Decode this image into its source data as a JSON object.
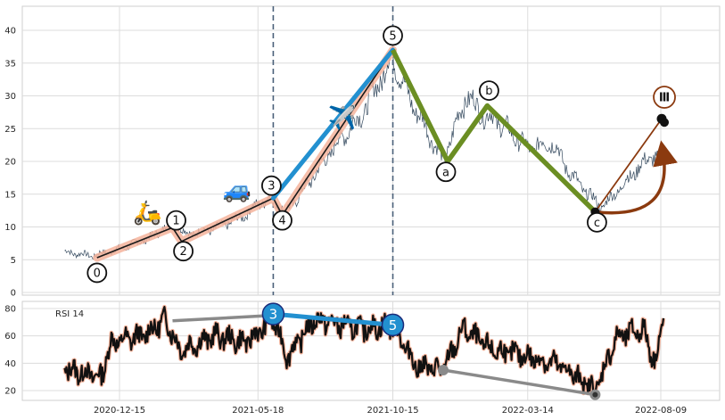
{
  "chart_data": [
    {
      "type": "line",
      "panel": "price",
      "title": "",
      "xlabel": "",
      "ylabel": "",
      "ylim": [
        -0.5,
        43
      ],
      "grid": true,
      "x_tick_labels": [
        "2020-12-15",
        "2021-05-18",
        "2021-10-15",
        "2022-03-14",
        "2022-08-09"
      ],
      "y_ticks": [
        0,
        5,
        10,
        15,
        20,
        25,
        30,
        35,
        40
      ],
      "colors": {
        "price_line": "#34495e",
        "impulse_glow": "#f4b39b",
        "impulse_core": "#1a1a1a",
        "impulse_3_5": "#2290d0",
        "correction": "#6b8e23",
        "projection": "#8b3a0f",
        "vlines": "#4a6079"
      },
      "price_series": {
        "description_points": [
          [
            "2020-10-15",
            6.2
          ],
          [
            "2020-11-15",
            5.6
          ],
          [
            "2020-12-15",
            6.6
          ],
          [
            "2021-01-20",
            8.5
          ],
          [
            "2021-02-12",
            10.8
          ],
          [
            "2021-02-28",
            8.9
          ],
          [
            "2021-03-30",
            9.7
          ],
          [
            "2021-04-30",
            11.5
          ],
          [
            "2021-05-18",
            13.5
          ],
          [
            "2021-06-02",
            14.5
          ],
          [
            "2021-06-18",
            12.2
          ],
          [
            "2021-07-15",
            17.0
          ],
          [
            "2021-08-15",
            23.0
          ],
          [
            "2021-09-10",
            27.0
          ],
          [
            "2021-10-01",
            32.5
          ],
          [
            "2021-10-15",
            36.0
          ],
          [
            "2021-11-01",
            30.0
          ],
          [
            "2021-11-25",
            24.0
          ],
          [
            "2021-12-10",
            20.0
          ],
          [
            "2021-12-25",
            26.0
          ],
          [
            "2022-01-05",
            30.0
          ],
          [
            "2022-01-25",
            27.0
          ],
          [
            "2022-02-10",
            26.0
          ],
          [
            "2022-03-14",
            22.0
          ],
          [
            "2022-04-10",
            23.0
          ],
          [
            "2022-05-01",
            18.0
          ],
          [
            "2022-05-20",
            15.0
          ],
          [
            "2022-06-05",
            13.0
          ],
          [
            "2022-06-25",
            16.0
          ],
          [
            "2022-07-15",
            19.0
          ],
          [
            "2022-08-01",
            21.0
          ],
          [
            "2022-08-09",
            19.5
          ]
        ]
      },
      "waves": [
        {
          "label": "0",
          "date": "2020-11-20",
          "value": 5.3
        },
        {
          "label": "1",
          "date": "2021-02-12",
          "value": 9.9
        },
        {
          "label": "2",
          "date": "2021-02-22",
          "value": 7.8
        },
        {
          "label": "3",
          "date": "2021-06-04",
          "value": 14.4
        },
        {
          "label": "4",
          "date": "2021-06-14",
          "value": 11.8
        },
        {
          "label": "5",
          "date": "2021-10-15",
          "value": 37.0
        },
        {
          "label": "a",
          "date": "2021-12-15",
          "value": 20.0
        },
        {
          "label": "b",
          "date": "2022-01-28",
          "value": 28.5
        },
        {
          "label": "c",
          "date": "2022-05-28",
          "value": 12.3
        },
        {
          "label": "Ⅲ",
          "date": "2022-08-10",
          "value": 26.5
        }
      ],
      "wave_label_points": [
        {
          "label": "0",
          "date": "2020-11-20",
          "value": 3.0
        },
        {
          "label": "1",
          "date": "2021-02-16",
          "value": 11.0
        },
        {
          "label": "2",
          "date": "2021-02-24",
          "value": 6.3
        },
        {
          "label": "3",
          "date": "2021-06-02",
          "value": 16.3
        },
        {
          "label": "4",
          "date": "2021-06-14",
          "value": 11.0
        },
        {
          "label": "5",
          "date": "2021-10-15",
          "value": 39.2
        },
        {
          "label": "a",
          "date": "2021-12-13",
          "value": 18.4
        },
        {
          "label": "b",
          "date": "2022-01-30",
          "value": 30.8
        },
        {
          "label": "c",
          "date": "2022-05-30",
          "value": 10.7
        },
        {
          "label": "Ⅲ",
          "date": "2022-08-13",
          "value": 29.8
        }
      ],
      "vertical_lines": [
        "2021-06-04",
        "2021-10-15"
      ],
      "icons": [
        {
          "name": "scooter-icon",
          "glyph": "🛵",
          "date": "2021-01-15",
          "value": 11.0
        },
        {
          "name": "car-icon",
          "glyph": "🚙",
          "date": "2021-04-25",
          "value": 14.5
        },
        {
          "name": "airplane-icon",
          "glyph": "✈️",
          "date": "2021-08-20",
          "value": 25.5
        }
      ]
    },
    {
      "type": "line",
      "panel": "rsi",
      "title": "RSI 14",
      "xlabel": "",
      "ylabel": "",
      "ylim": [
        15,
        84
      ],
      "y_ticks": [
        20,
        40,
        60,
        80
      ],
      "grid": true,
      "rsi_markers": [
        {
          "label": "3",
          "date": "2021-06-04",
          "value": 76
        },
        {
          "label": "5",
          "date": "2021-10-15",
          "value": 68
        }
      ],
      "rsi_gray_points": [
        {
          "date": "2021-02-12",
          "value": 71
        },
        {
          "date": "2021-06-04",
          "value": 75
        },
        {
          "date": "2021-12-10",
          "value": 35
        },
        {
          "date": "2022-05-28",
          "value": 17
        }
      ]
    }
  ]
}
